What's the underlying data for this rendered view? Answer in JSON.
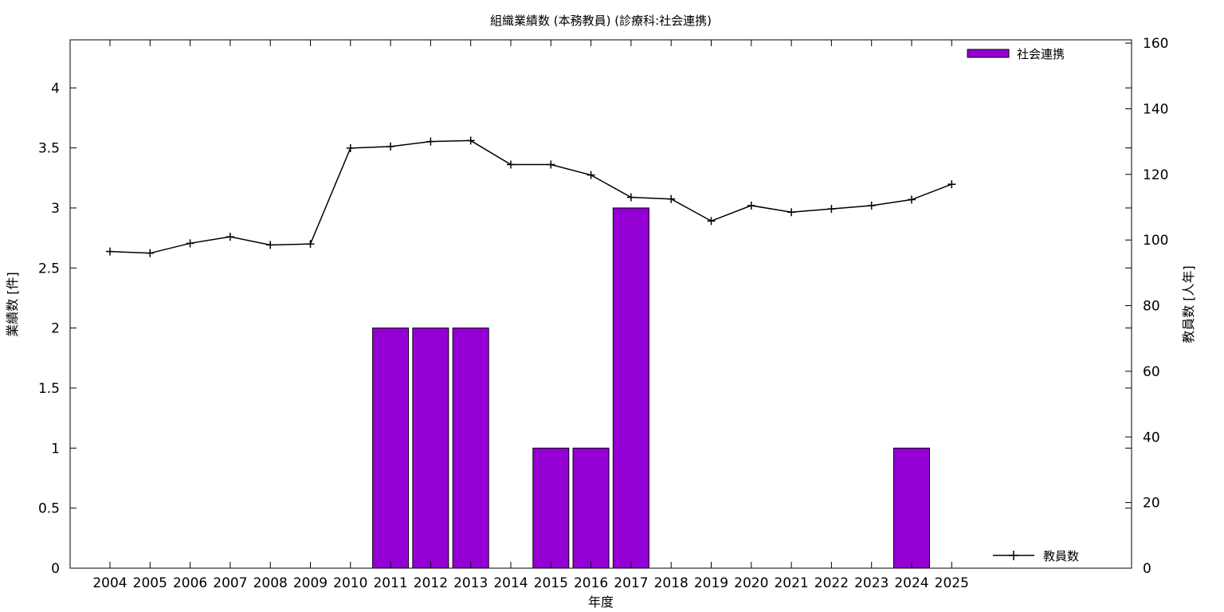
{
  "chart_data": {
    "type": "bar",
    "title": "組織業績数 (本務教員) (診療科:社会連携)",
    "xlabel": "年度",
    "ylabel": "業績数 [件]",
    "y2label": "教員数 [人年]",
    "categories": [
      "2004",
      "2005",
      "2006",
      "2007",
      "2008",
      "2009",
      "2010",
      "2011",
      "2012",
      "2013",
      "2014",
      "2015",
      "2016",
      "2017",
      "2018",
      "2019",
      "2020",
      "2021",
      "2022",
      "2023",
      "2024",
      "2025"
    ],
    "series": [
      {
        "name": "社会連携",
        "type": "bar",
        "axis": "left",
        "color": "#9400d3",
        "values": [
          0,
          0,
          0,
          0,
          0,
          0,
          0,
          2,
          2,
          2,
          0,
          1,
          1,
          3,
          0,
          0,
          0,
          0,
          0,
          0,
          1,
          0
        ]
      },
      {
        "name": "教員数",
        "type": "line",
        "axis": "right",
        "color": "#000000",
        "marker": "plus",
        "values": [
          96.5,
          96,
          99,
          101,
          98.5,
          98.8,
          128,
          128.5,
          130,
          130.3,
          123,
          123,
          119.8,
          113,
          112.5,
          105.8,
          110.5,
          108.5,
          109.5,
          110.5,
          112.3,
          117
        ]
      }
    ],
    "ylim": [
      0,
      4.4
    ],
    "yticks": [
      "0",
      "0.5",
      "1",
      "1.5",
      "2",
      "2.5",
      "3",
      "3.5",
      "4"
    ],
    "y2lim": [
      0,
      161
    ],
    "y2ticks": [
      "0",
      "20",
      "40",
      "60",
      "80",
      "100",
      "120",
      "140",
      "160"
    ],
    "legend": [
      "top-right",
      "bottom-right"
    ],
    "grid": false
  }
}
